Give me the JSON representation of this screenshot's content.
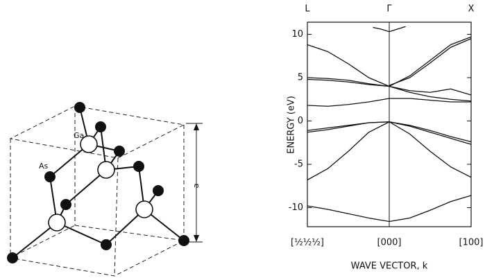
{
  "diagram": {
    "labels": {
      "ga": "Ga",
      "as": "As",
      "a": "a"
    }
  },
  "chart_data": {
    "type": "line",
    "ylabel": "ENERGY (eV)",
    "xlabel": "WAVE VECTOR, k",
    "x_top_labels": [
      "L",
      "Γ",
      "X"
    ],
    "x": [
      -1,
      -0.75,
      -0.5,
      -0.25,
      0,
      0.25,
      0.5,
      0.75,
      1
    ],
    "xlim": [
      -1,
      1
    ],
    "xticks": [
      {
        "value": -1,
        "label": "[½½½]"
      },
      {
        "value": 0,
        "label": "[000]"
      },
      {
        "value": 1,
        "label": "[100]"
      }
    ],
    "ylim": [
      -12.2,
      11.4
    ],
    "yticks": [
      10,
      5,
      0,
      -5,
      -10
    ],
    "series": [
      {
        "color": "#111",
        "values": [
          -9.8,
          -10.2,
          -10.7,
          -11.2,
          -11.6,
          -11.2,
          -10.3,
          -9.3,
          -8.6
        ]
      },
      {
        "color": "#111",
        "values": [
          -6.8,
          -5.5,
          -3.5,
          -1.3,
          -0.1,
          -1.5,
          -3.5,
          -5.3,
          -6.5
        ]
      },
      {
        "color": "#111",
        "values": [
          -1.3,
          -1.0,
          -0.6,
          -0.2,
          -0.1,
          -0.6,
          -1.3,
          -2.0,
          -2.7
        ]
      },
      {
        "color": "#111",
        "values": [
          -1.1,
          -0.8,
          -0.5,
          -0.2,
          -0.1,
          -0.5,
          -1.1,
          -1.8,
          -2.4
        ]
      },
      {
        "color": "#111",
        "values": [
          1.8,
          1.7,
          1.9,
          2.2,
          2.6,
          2.6,
          2.4,
          2.2,
          2.2
        ]
      },
      {
        "color": "#111",
        "values": [
          5.0,
          4.9,
          4.7,
          4.3,
          4.0,
          3.3,
          2.8,
          2.5,
          2.3
        ]
      },
      {
        "color": "#111",
        "values": [
          4.8,
          4.7,
          4.5,
          4.2,
          4.0,
          3.5,
          3.3,
          3.7,
          3.0
        ]
      },
      {
        "color": "#111",
        "values": [
          8.8,
          8.0,
          6.6,
          5.0,
          4.0,
          5.2,
          7.0,
          8.8,
          9.7
        ]
      },
      {
        "color": "#111",
        "values": [
          null,
          null,
          null,
          null,
          4.1,
          5.0,
          6.7,
          8.5,
          9.5
        ]
      },
      {
        "color": "#111",
        "x": [
          -0.2,
          -0.1,
          0,
          0.1,
          0.2
        ],
        "values": [
          10.8,
          10.6,
          10.3,
          10.6,
          10.9
        ]
      }
    ]
  }
}
